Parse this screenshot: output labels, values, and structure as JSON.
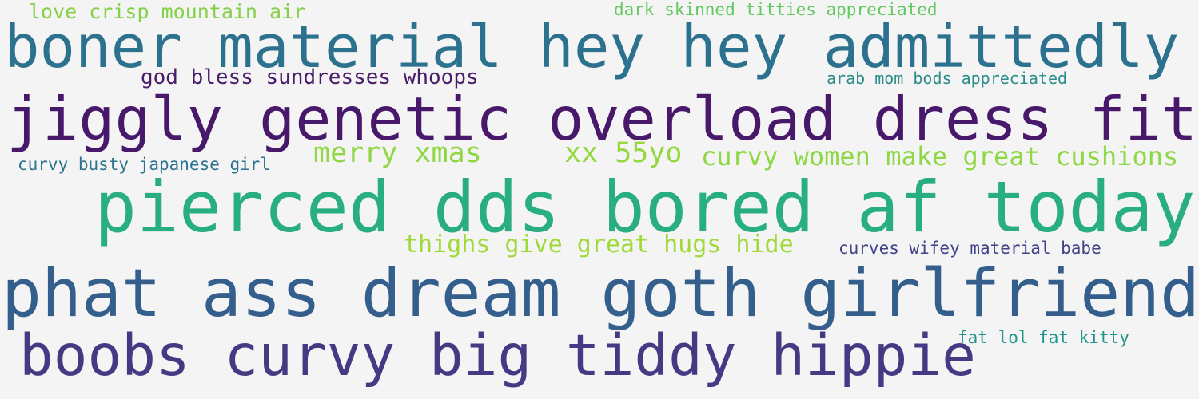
{
  "words": [
    "love crisp mountain air",
    "dark skinned titties appreciated",
    "boner material hey hey admittedly",
    "god bless sundresses whoops",
    "arab mom bods appreciated",
    "jiggly genetic overload dress fits",
    "merry xmas",
    "xx 55yo",
    "curvy women make great cushions",
    "curvy busty japanese girl",
    "pierced dds bored af today",
    "thighs give great hugs hide",
    "curves wifey material babe",
    "phat ass dream goth girlfriend",
    "fat lol fat kitty",
    "boobs curvy big tiddy hippie"
  ],
  "colors": {
    "background": "#f4f4f4",
    "palette": [
      "#48186a",
      "#414487",
      "#2c718e",
      "#21908d",
      "#28ae80",
      "#8fd744"
    ]
  }
}
